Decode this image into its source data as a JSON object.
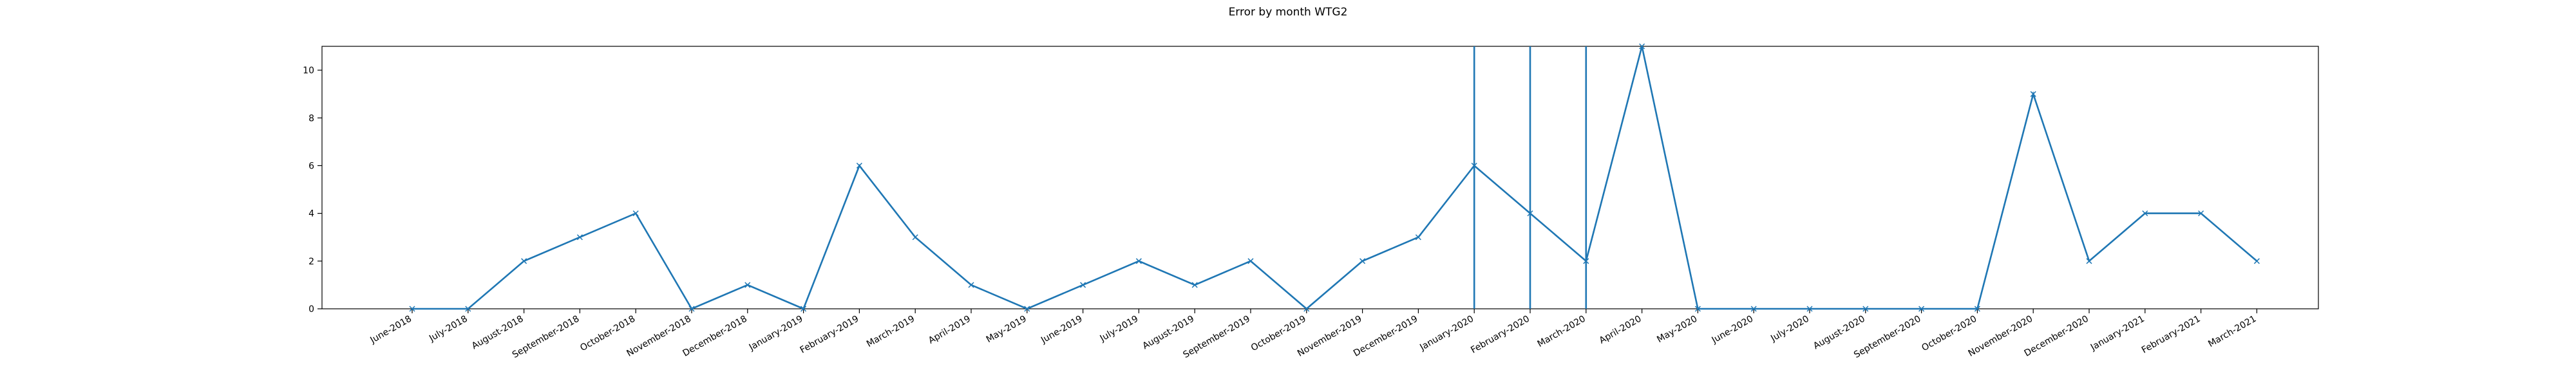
{
  "chart_data": {
    "type": "line",
    "title": "Error by month WTG2",
    "xlabel": "",
    "ylabel": "",
    "ylim": [
      0,
      11
    ],
    "yticks": [
      0,
      2,
      4,
      6,
      8,
      10
    ],
    "grid": false,
    "categories": [
      "June-2018",
      "July-2018",
      "August-2018",
      "September-2018",
      "October-2018",
      "November-2018",
      "December-2018",
      "January-2019",
      "February-2019",
      "March-2019",
      "April-2019",
      "May-2019",
      "June-2019",
      "July-2019",
      "August-2019",
      "September-2019",
      "October-2019",
      "November-2019",
      "December-2019",
      "January-2020",
      "February-2020",
      "March-2020",
      "April-2020",
      "May-2020",
      "June-2020",
      "July-2020",
      "August-2020",
      "September-2020",
      "October-2020",
      "November-2020",
      "December-2020",
      "January-2021",
      "February-2021",
      "March-2021"
    ],
    "series": [
      {
        "color": "#1f77b4",
        "marker": "x",
        "values": [
          0,
          0,
          2,
          3,
          4,
          0,
          1,
          0,
          6,
          3,
          1,
          0,
          1,
          2,
          1,
          2,
          0,
          2,
          3,
          6,
          4,
          2,
          11,
          0,
          0,
          0,
          0,
          0,
          0,
          9,
          2,
          4,
          4,
          2
        ]
      }
    ],
    "vertical_lines": {
      "color": "#1f77b4",
      "at": [
        "January-2020",
        "February-2020",
        "March-2020"
      ]
    }
  }
}
